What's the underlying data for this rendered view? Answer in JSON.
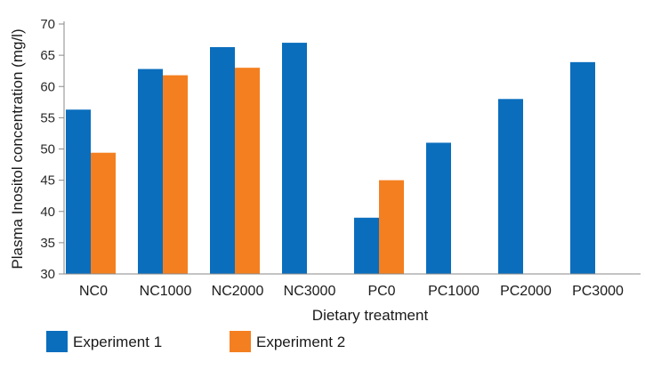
{
  "chart_data": {
    "type": "bar",
    "xlabel": "Dietary treatment",
    "ylabel": "Plasma Inositol concentration (mg/l)",
    "ylim": [
      30,
      70
    ],
    "yticks": [
      30,
      35,
      40,
      45,
      50,
      55,
      60,
      65,
      70
    ],
    "grid": false,
    "legend_position": "bottom-left",
    "categories": [
      "NC0",
      "NC1000",
      "NC2000",
      "NC3000",
      "PC0",
      "PC1000",
      "PC2000",
      "PC3000"
    ],
    "series": [
      {
        "name": "Experiment 1",
        "color": "#0a6ebd",
        "values": [
          56.3,
          62.8,
          66.3,
          67.0,
          39.0,
          51.0,
          58.0,
          63.9
        ]
      },
      {
        "name": "Experiment 2",
        "color": "#f47f20",
        "values": [
          49.4,
          61.8,
          63.0,
          null,
          45.0,
          null,
          null,
          null
        ]
      }
    ]
  }
}
